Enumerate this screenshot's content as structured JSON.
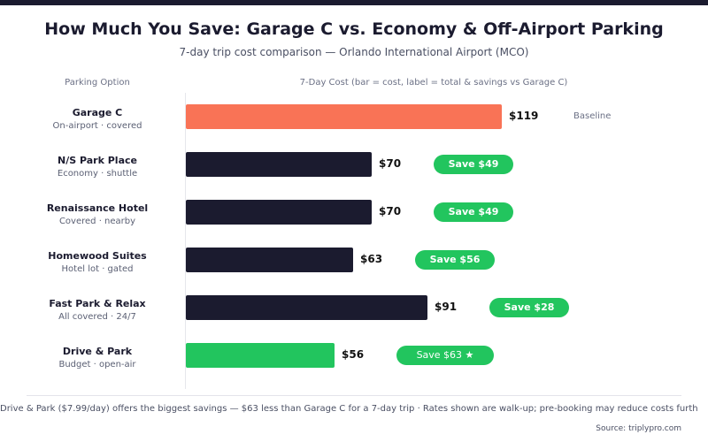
{
  "title": "How Much You Save: Garage C vs. Economy & Off-Airport Parking",
  "subtitle": "7-day trip cost comparison — Orlando International Airport (MCO)",
  "headers": {
    "option": "Parking Option",
    "cost": "7-Day Cost (bar = cost, label = total & savings vs Garage C)"
  },
  "colors": {
    "baseline": "#f97356",
    "standard": "#1b1b2f",
    "best": "#22c55e",
    "pill": "#22c55e"
  },
  "chart_data": {
    "type": "bar",
    "orientation": "horizontal",
    "categories": [
      "Garage C",
      "N/S Park Place",
      "Renaissance Hotel",
      "Homewood Suites",
      "Fast Park & Relax",
      "Drive & Park"
    ],
    "values": [
      119,
      70,
      70,
      63,
      91,
      56
    ],
    "unit": "$",
    "series": [
      {
        "values": [
          119,
          70,
          70,
          63,
          91,
          56
        ]
      }
    ]
  },
  "rows": [
    {
      "name": "Garage C",
      "sub": "On-airport · covered",
      "value": 119,
      "value_label": "$119",
      "kind": "baseline",
      "note": "Baseline"
    },
    {
      "name": "N/S Park Place",
      "sub": "Economy · shuttle",
      "value": 70,
      "value_label": "$70",
      "kind": "standard",
      "savings": "Save $49"
    },
    {
      "name": "Renaissance Hotel",
      "sub": "Covered · nearby",
      "value": 70,
      "value_label": "$70",
      "kind": "standard",
      "savings": "Save $49"
    },
    {
      "name": "Homewood Suites",
      "sub": "Hotel lot · gated",
      "value": 63,
      "value_label": "$63",
      "kind": "standard",
      "savings": "Save $56"
    },
    {
      "name": "Fast Park & Relax",
      "sub": "All covered · 24/7",
      "value": 91,
      "value_label": "$91",
      "kind": "standard",
      "savings": "Save $28"
    },
    {
      "name": "Drive & Park",
      "sub": "Budget · open-air",
      "value": 56,
      "value_label": "$56",
      "kind": "best",
      "savings": "Save $63 ★"
    }
  ],
  "footnote": "Drive & Park ($7.99/day) offers the biggest savings — $63 less than Garage C for a 7-day trip · Rates shown are walk-up; pre-booking may reduce costs furth",
  "source": "Source: triplypro.com"
}
